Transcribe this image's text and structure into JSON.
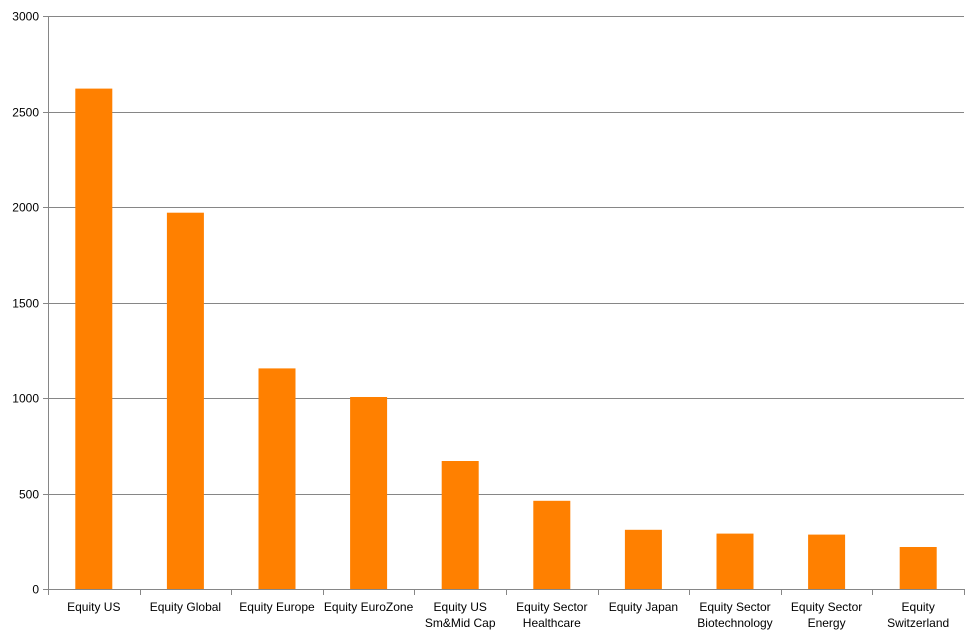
{
  "chart_data": {
    "type": "bar",
    "title": "",
    "xlabel": "",
    "ylabel": "",
    "ylim": [
      0,
      3000
    ],
    "yticks": [
      0,
      500,
      1000,
      1500,
      2000,
      2500,
      3000
    ],
    "yticks_text": [
      "0",
      "500",
      "1000",
      "1500",
      "2000",
      "2500",
      "3000"
    ],
    "grid": "horizontal",
    "legend": "none",
    "bar_color": "#FF8000",
    "categories": [
      "Equity US",
      "Equity Global",
      "Equity Europe",
      "Equity EuroZone",
      "Equity US Sm&Mid Cap",
      "Equity Sector Healthcare",
      "Equity Japan",
      "Equity Sector Biotechnology",
      "Equity Sector Energy",
      "Equity Switzerland"
    ],
    "category_lines": [
      [
        "Equity US"
      ],
      [
        "Equity Global"
      ],
      [
        "Equity Europe"
      ],
      [
        "Equity EuroZone"
      ],
      [
        "Equity US",
        "Sm&Mid Cap"
      ],
      [
        "Equity Sector",
        "Healthcare"
      ],
      [
        "Equity Japan"
      ],
      [
        "Equity Sector",
        "Biotechnology"
      ],
      [
        "Equity Sector",
        "Energy"
      ],
      [
        "Equity",
        "Switzerland"
      ]
    ],
    "values": [
      2620,
      1970,
      1155,
      1005,
      670,
      462,
      310,
      290,
      285,
      220
    ]
  }
}
